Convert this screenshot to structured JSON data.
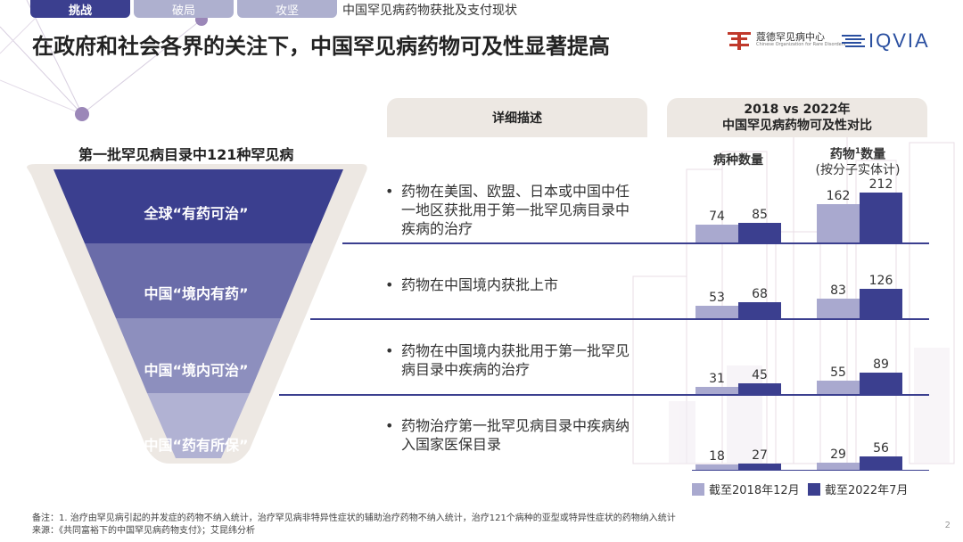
{
  "nav": {
    "tabs": [
      {
        "label": "挑战",
        "active": true
      },
      {
        "label": "破局",
        "active": false
      },
      {
        "label": "攻坚",
        "active": false
      }
    ],
    "breadcrumb": "中国罕见病药物获批及支付现状"
  },
  "title": "在政府和社会各界的关注下，中国罕见病药物可及性显著提高",
  "logos": {
    "cord_cn": "蔻德罕见病中心",
    "cord_en": "Chinese Organization for Rare Disorders",
    "iqvia": "IQVIA"
  },
  "funnel": {
    "title": "第一批罕见病目录中121种罕见病",
    "levels": [
      {
        "label": "全球“有药可治”",
        "color": "#3b3f8f"
      },
      {
        "label": "中国“境内有药”",
        "color": "#6a6ca9"
      },
      {
        "label": "中国“境内可治”",
        "color": "#8d8fbe"
      },
      {
        "label": "中国“药有所保”",
        "color": "#b1b2d3"
      }
    ]
  },
  "description": {
    "header": "详细描述",
    "bullet": "•",
    "items": [
      "药物在美国、欧盟、日本或中国中任一地区获批用于第一批罕见病目录中疾病的治疗",
      "药物在中国境内获批上市",
      "药物在中国境内获批用于第一批罕见病目录中疾病的治疗",
      "药物治疗第一批罕见病目录中疾病纳入国家医保目录"
    ]
  },
  "comparison": {
    "header_line1": "2018 vs 2022年",
    "header_line2": "中国罕见病药物可及性对比",
    "col1": "病种数量",
    "col2_line1": "药物",
    "col2_sup": "1",
    "col2_line1b": "数量",
    "col2_line2": "(按分子实体计)"
  },
  "chart_data": {
    "type": "bar",
    "categories": [
      "全球“有药可治”",
      "中国“境内有药”",
      "中国“境内可治”",
      "中国“药有所保”"
    ],
    "groups": [
      "病种数量",
      "药物数量(按分子实体计)"
    ],
    "series": [
      {
        "name": "截至2018年12月",
        "color": "#a9a9cf",
        "disease_counts": [
          74,
          53,
          31,
          18
        ],
        "drug_counts": [
          162,
          83,
          55,
          29
        ]
      },
      {
        "name": "截至2022年7月",
        "color": "#3b3f8f",
        "disease_counts": [
          85,
          68,
          45,
          27
        ],
        "drug_counts": [
          212,
          126,
          89,
          56
        ]
      }
    ]
  },
  "footnote": "备注：1. 治疗由罕见病引起的并发症的药物不纳入统计，治疗罕见病非特异性症状的辅助治疗药物不纳入统计，治疗121个病种的亚型或特异性症状的药物纳入统计",
  "source": "来源：《共同富裕下的中国罕见病药物支付》；艾昆纬分析",
  "page_number": "2"
}
